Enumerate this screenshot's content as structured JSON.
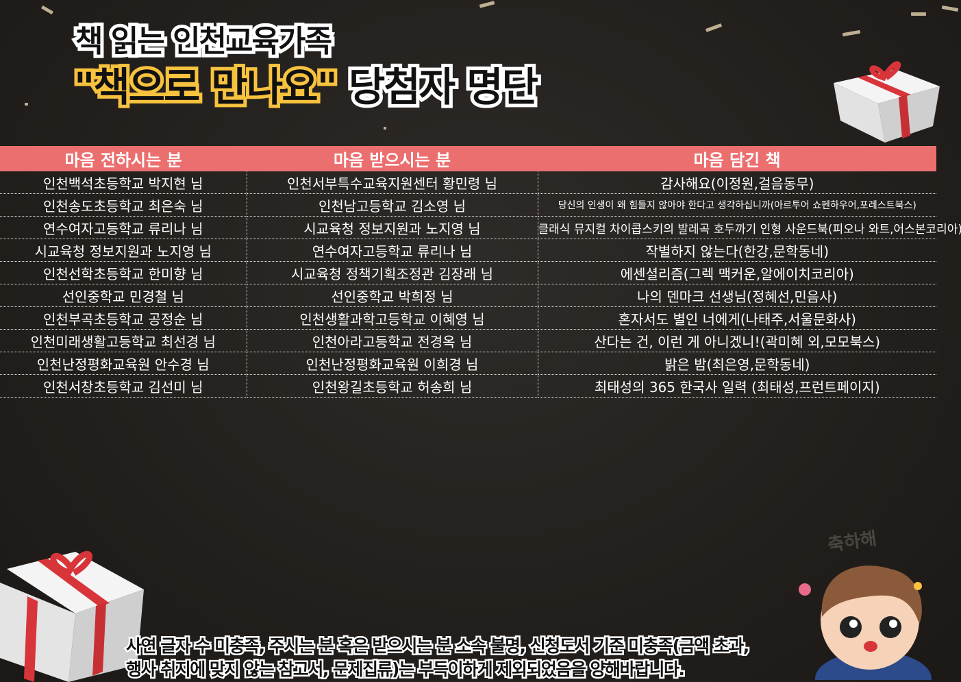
{
  "title": {
    "line1": "책 읽는 인천교육가족",
    "line2_highlight": "\"책으로 만나요\"",
    "line2_rest": "당첨자 명단"
  },
  "table": {
    "headers": [
      "마음 전하시는 분",
      "마음 받으시는 분",
      "마음 담긴 책"
    ],
    "rows": [
      [
        "인천백석초등학교 박지현 님",
        "인천서부특수교육지원센터 황민령 님",
        "감사해요(이정원,걸음동무)"
      ],
      [
        "인천송도초등학교 최은숙 님",
        "인천남고등학교 김소영 님",
        "당신의 인생이 왜 힘들지 않아야 한다고 생각하십니까(아르투어 쇼펜하우어,포레스트북스)"
      ],
      [
        "연수여자고등학교 류리나 님",
        "시교육청 정보지원과   노지영 님",
        "클래식 뮤지컬 차이콥스키의 발레곡 호두까기 인형 사운드북(피오나 와트,어스본코리아)"
      ],
      [
        "시교육청 정보지원과   노지영 님",
        "연수여자고등학교 류리나 님",
        "작별하지 않는다(한강,문학동네)"
      ],
      [
        "인천선학초등학교 한미향 님",
        "시교육청 정책기획조정관 김장래 님",
        "에센셜리즘(그렉 맥커운,알에이치코리아)"
      ],
      [
        "선인중학교   민경철 님",
        "선인중학교 박희정 님",
        "나의 덴마크 선생님(정혜선,민음사)"
      ],
      [
        "인천부곡초등학교   공정순 님",
        "인천생활과학고등학교 이혜영 님",
        "혼자서도 별인 너에게(나태주,서울문화사)"
      ],
      [
        "인천미래생활고등학교 최선경 님",
        "인천아라고등학교 전경옥 님",
        "산다는 건, 이런 게 아니겠니!(곽미혜 외,모모북스)"
      ],
      [
        "인천난정평화교육원 안수경 님",
        "인천난정평화교육원 이희경 님",
        "밝은 밤(최은영,문학동네)"
      ],
      [
        "인천서창초등학교 김선미 님",
        "인천왕길초등학교 허송희 님",
        "최태성의 365 한국사 일력 (최태성,프런트페이지)"
      ]
    ]
  },
  "notice": {
    "line1": "사연 글자 수 미충족, 주시는 분 혹은 받으시는 분 소속 불명, 신청도서 기준 미충족(금액 초과,",
    "line2": "행사 취지에 맞지 않는 참고서, 문제집류)는 부득이하게 제외되었음을 양해바랍니다."
  },
  "decor": {
    "congrats": "축하해"
  },
  "colors": {
    "header": "#ec6f70",
    "highlight": "#f7c23e",
    "background": "#231f1c"
  }
}
